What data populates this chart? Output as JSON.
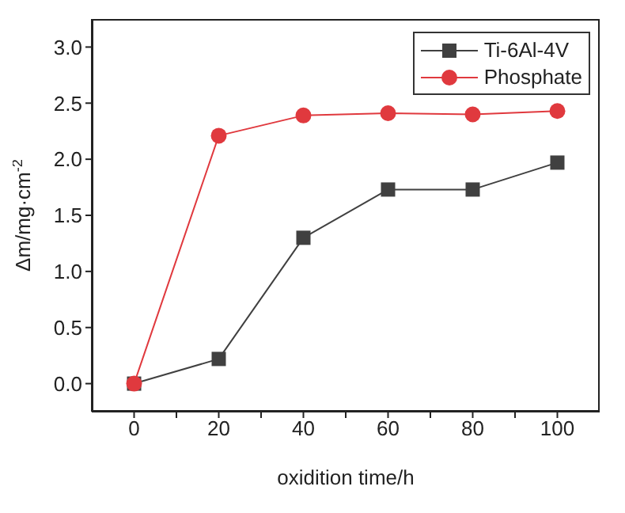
{
  "chart_data": {
    "type": "line",
    "xlabel": "oxidition time/h",
    "ylabel": "Δm/mg·cm$^{-2}$",
    "x": [
      0,
      20,
      40,
      60,
      80,
      100
    ],
    "series": [
      {
        "name": "Ti-6Al-4V",
        "color": "#404040",
        "marker": "square",
        "values": [
          0,
          0.22,
          1.3,
          1.73,
          1.73,
          1.97
        ]
      },
      {
        "name": "Phosphate",
        "color": "#e0393e",
        "marker": "circle",
        "values": [
          0,
          2.21,
          2.39,
          2.41,
          2.4,
          2.43
        ]
      }
    ],
    "xlim": [
      -10,
      110
    ],
    "xticks": [
      0,
      {
        "value": 10,
        "label": null
      },
      20,
      {
        "value": 30,
        "label": null
      },
      40,
      {
        "value": 50,
        "label": null
      },
      60,
      {
        "value": 70,
        "label": null
      },
      80,
      {
        "value": 90,
        "label": null
      },
      100
    ],
    "ylim": [
      -0.25,
      3.25
    ],
    "yticks": [
      {
        "value": 0,
        "label": "0.0"
      },
      {
        "value": 0.5,
        "label": "0.5"
      },
      {
        "value": 1,
        "label": "1.0"
      },
      {
        "value": 1.5,
        "label": "1.5"
      },
      {
        "value": 2,
        "label": "2.0"
      },
      {
        "value": 2.5,
        "label": "2.5"
      },
      {
        "value": 3,
        "label": "3.0"
      }
    ],
    "grid": false,
    "legend": "top right",
    "line_style": "solid"
  }
}
